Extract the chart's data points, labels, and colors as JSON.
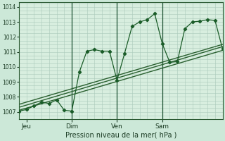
{
  "xlabel": "Pression niveau de la mer( hPa )",
  "ylim": [
    1006.5,
    1014.3
  ],
  "xlim": [
    0,
    108
  ],
  "yticks": [
    1007,
    1008,
    1009,
    1010,
    1011,
    1012,
    1013,
    1014
  ],
  "xtick_positions": [
    4,
    28,
    52,
    76
  ],
  "xtick_labels": [
    "Jeu",
    "Dim",
    "Ven",
    "Sam"
  ],
  "bg_color": "#cce8d8",
  "plot_bg_color": "#d8eedf",
  "grid_color": "#aacaba",
  "line_color": "#1a5c28",
  "vline_positions": [
    28,
    52,
    76
  ],
  "series1_x": [
    0,
    4,
    8,
    12,
    16,
    20,
    24,
    28,
    32,
    36,
    40,
    44,
    48,
    52,
    56,
    60,
    64,
    68,
    72,
    76,
    80,
    84,
    88,
    92,
    96,
    100,
    104,
    108
  ],
  "series1_y": [
    1007.05,
    1007.15,
    1007.4,
    1007.65,
    1007.55,
    1007.8,
    1007.1,
    1007.05,
    1009.65,
    1011.05,
    1011.15,
    1011.05,
    1011.05,
    1009.1,
    1010.9,
    1012.7,
    1013.0,
    1013.15,
    1013.55,
    1011.55,
    1010.3,
    1010.35,
    1012.55,
    1013.0,
    1013.05,
    1013.15,
    1013.1,
    1011.2
  ],
  "series2_x": [
    0,
    108
  ],
  "series2_y": [
    1007.1,
    1011.1
  ],
  "series3_x": [
    0,
    108
  ],
  "series3_y": [
    1007.3,
    1011.35
  ],
  "series4_x": [
    0,
    108
  ],
  "series4_y": [
    1007.5,
    1011.5
  ]
}
